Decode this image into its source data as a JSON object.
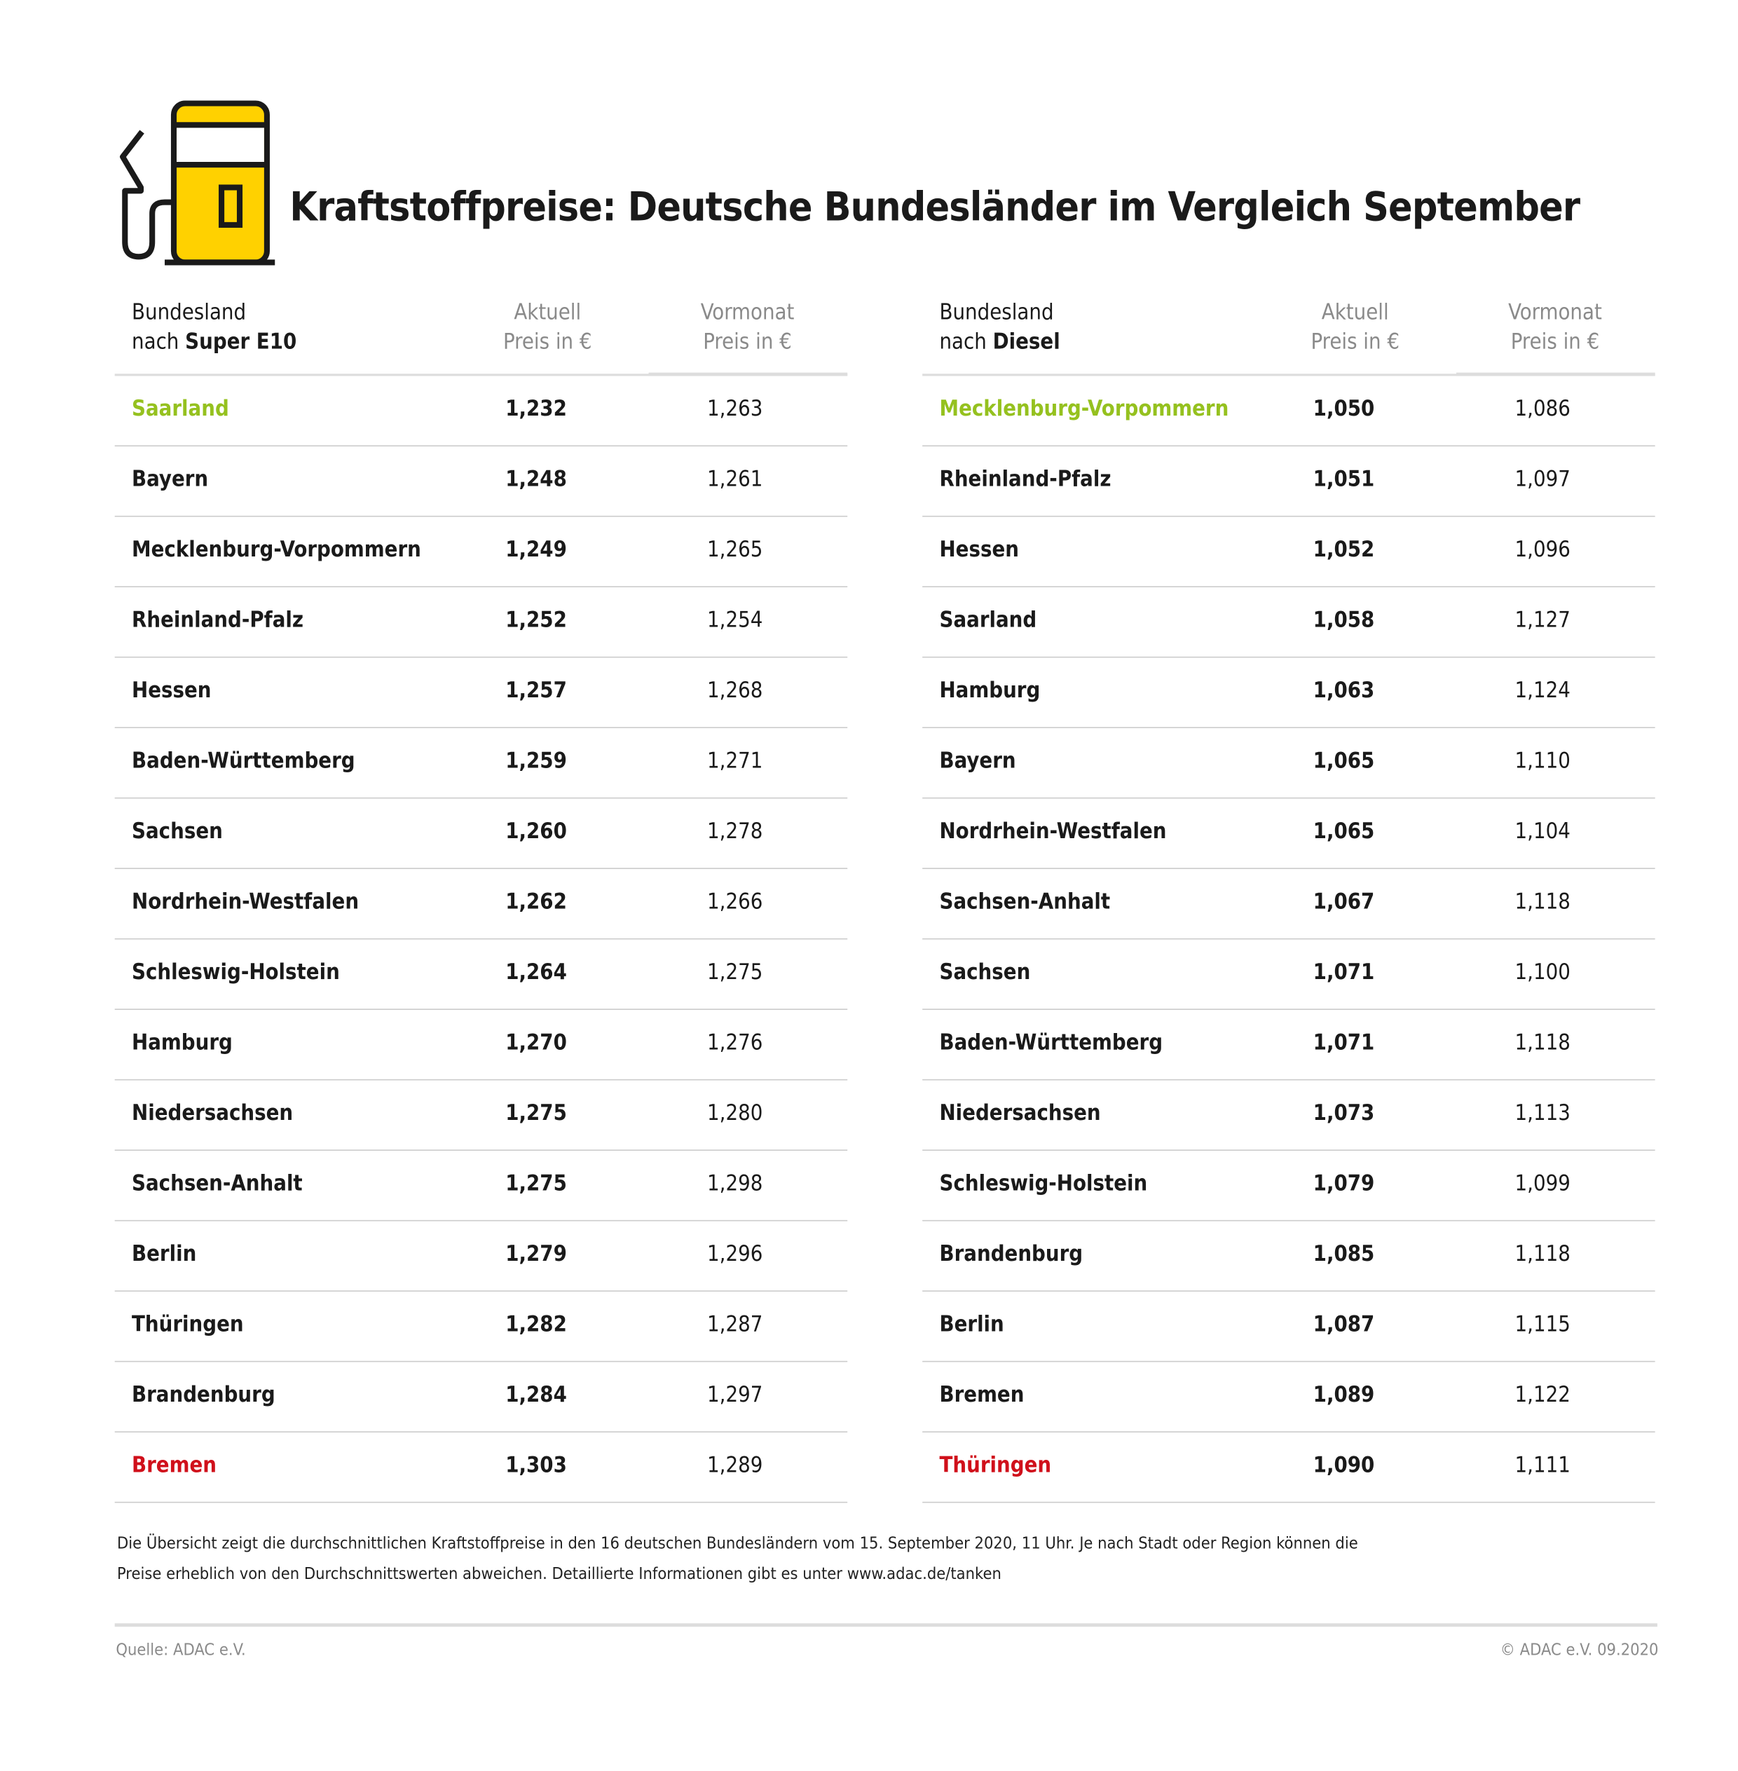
{
  "title": "Kraftstoffpreise: Deutsche Bundesländer im Vergleich September",
  "colors": {
    "best": "#95c11f",
    "worst": "#d0101b",
    "pump_yellow": "#ffd100"
  },
  "icon": "fuel-pump-icon",
  "left": {
    "header": {
      "line1": "Bundesland",
      "line2_prefix": "nach ",
      "line2_bold": "Super E10",
      "aktuell1": "Aktuell",
      "aktuell2": "Preis in €",
      "vormonat1": "Vormonat",
      "vormonat2": "Preis in €"
    },
    "rows": [
      [
        "Saarland",
        "1,232",
        "1,263"
      ],
      [
        "Bayern",
        "1,248",
        "1,261"
      ],
      [
        "Mecklenburg-Vorpommern",
        "1,249",
        "1,265"
      ],
      [
        "Rheinland-Pfalz",
        "1,252",
        "1,254"
      ],
      [
        "Hessen",
        "1,257",
        "1,268"
      ],
      [
        "Baden-Württemberg",
        "1,259",
        "1,271"
      ],
      [
        "Sachsen",
        "1,260",
        "1,278"
      ],
      [
        "Nordrhein-Westfalen",
        "1,262",
        "1,266"
      ],
      [
        "Schleswig-Holstein",
        "1,264",
        "1,275"
      ],
      [
        "Hamburg",
        "1,270",
        "1,276"
      ],
      [
        "Niedersachsen",
        "1,275",
        "1,280"
      ],
      [
        "Sachsen-Anhalt",
        "1,275",
        "1,298"
      ],
      [
        "Berlin",
        "1,279",
        "1,296"
      ],
      [
        "Thüringen",
        "1,282",
        "1,287"
      ],
      [
        "Brandenburg",
        "1,284",
        "1,297"
      ],
      [
        "Bremen",
        "1,303",
        "1,289"
      ]
    ]
  },
  "right": {
    "header": {
      "line1": "Bundesland",
      "line2_prefix": "nach ",
      "line2_bold": "Diesel",
      "aktuell1": "Aktuell",
      "aktuell2": "Preis in €",
      "vormonat1": "Vormonat",
      "vormonat2": "Preis in €"
    },
    "rows": [
      [
        "Mecklenburg-Vorpommern",
        "1,050",
        "1,086"
      ],
      [
        "Rheinland-Pfalz",
        "1,051",
        "1,097"
      ],
      [
        "Hessen",
        "1,052",
        "1,096"
      ],
      [
        "Saarland",
        "1,058",
        "1,127"
      ],
      [
        "Hamburg",
        "1,063",
        "1,124"
      ],
      [
        "Bayern",
        "1,065",
        "1,110"
      ],
      [
        "Nordrhein-Westfalen",
        "1,065",
        "1,104"
      ],
      [
        "Sachsen-Anhalt",
        "1,067",
        "1,118"
      ],
      [
        "Sachsen",
        "1,071",
        "1,100"
      ],
      [
        "Baden-Württemberg",
        "1,071",
        "1,118"
      ],
      [
        "Niedersachsen",
        "1,073",
        "1,113"
      ],
      [
        "Schleswig-Holstein",
        "1,079",
        "1,099"
      ],
      [
        "Brandenburg",
        "1,085",
        "1,118"
      ],
      [
        "Berlin",
        "1,087",
        "1,115"
      ],
      [
        "Bremen",
        "1,089",
        "1,122"
      ],
      [
        "Thüringen",
        "1,090",
        "1,111"
      ]
    ]
  },
  "note": {
    "line1": "Die Übersicht zeigt die durchschnittlichen Kraftstoffpreise in den 16 deutschen Bundesländern vom 15. September 2020, 11 Uhr.  Je nach Stadt oder Region können die",
    "line2": "Preise erheblich von den Durchschnittswerten abweichen. Detaillierte Informationen gibt es unter www.adac.de/tanken"
  },
  "footer": {
    "source": "Quelle: ADAC e.V.",
    "copyright": "© ADAC e.V. 09.2020"
  }
}
